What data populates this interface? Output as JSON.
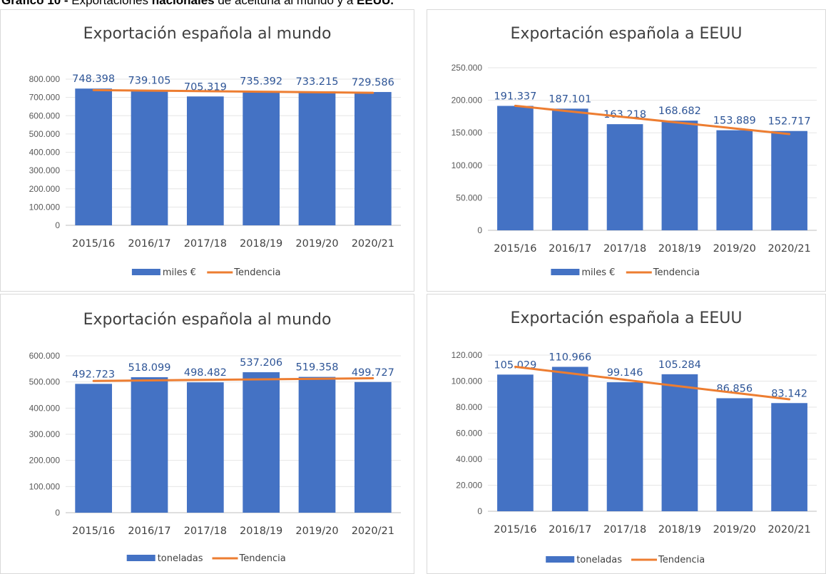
{
  "heading": {
    "prefix": "Gráfico 10 -",
    "text_before": " Exportaciones ",
    "bold_word": "nacionales",
    "text_after": " de aceituna al mundo y a ",
    "bold_end": "EEUU."
  },
  "colors": {
    "bar": "#4472c4",
    "trend": "#ed7d31"
  },
  "chart_data": [
    {
      "type": "bar",
      "title": "Exportación española al mundo",
      "categories": [
        "2015/16",
        "2016/17",
        "2017/18",
        "2018/19",
        "2019/20",
        "2020/21"
      ],
      "series": [
        {
          "name": "miles €",
          "values": [
            748398,
            739105,
            705319,
            735392,
            733215,
            729586
          ],
          "labels": [
            "748.398",
            "739.105",
            "705.319",
            "735.392",
            "733.215",
            "729.586"
          ]
        },
        {
          "name": "Tendencia",
          "type": "line",
          "values": [
            740000,
            737100,
            734200,
            731300,
            728400,
            725500
          ]
        }
      ],
      "ylim": [
        0,
        800000
      ],
      "yticks": [
        0,
        100000,
        200000,
        300000,
        400000,
        500000,
        600000,
        700000,
        800000
      ],
      "ytick_labels": [
        "0",
        "100.000",
        "200.000",
        "300.000",
        "400.000",
        "500.000",
        "600.000",
        "700.000",
        "800.000"
      ],
      "grid": true,
      "legend_position": "bottom"
    },
    {
      "type": "bar",
      "title": "Exportación española a EEUU",
      "categories": [
        "2015/16",
        "2016/17",
        "2017/18",
        "2018/19",
        "2019/20",
        "2020/21"
      ],
      "series": [
        {
          "name": "miles €",
          "values": [
            191337,
            187101,
            163218,
            168682,
            153889,
            152717
          ],
          "labels": [
            "191.337",
            "187.101",
            "163.218",
            "168.682",
            "153.889",
            "152.717"
          ]
        },
        {
          "name": "Tendencia",
          "type": "line",
          "values": [
            191500,
            182800,
            174100,
            165400,
            156700,
            148000
          ]
        }
      ],
      "ylim": [
        0,
        250000
      ],
      "yticks": [
        0,
        50000,
        100000,
        150000,
        200000,
        250000
      ],
      "ytick_labels": [
        "0",
        "50.000",
        "100.000",
        "150.000",
        "200.000",
        "250.000"
      ],
      "grid": true,
      "legend_position": "bottom"
    },
    {
      "type": "bar",
      "title": "Exportación española al mundo",
      "categories": [
        "2015/16",
        "2016/17",
        "2017/18",
        "2018/19",
        "2019/20",
        "2020/21"
      ],
      "series": [
        {
          "name": "toneladas",
          "values": [
            492723,
            518099,
            498482,
            537206,
            519358,
            499727
          ],
          "labels": [
            "492.723",
            "518.099",
            "498.482",
            "537.206",
            "519.358",
            "499.727"
          ]
        },
        {
          "name": "Tendencia",
          "type": "line",
          "values": [
            504000,
            506000,
            508000,
            510000,
            512000,
            514000
          ]
        }
      ],
      "ylim": [
        0,
        600000
      ],
      "yticks": [
        0,
        100000,
        200000,
        300000,
        400000,
        500000,
        600000
      ],
      "ytick_labels": [
        "0",
        "100.000",
        "200.000",
        "300.000",
        "400.000",
        "500.000",
        "600.000"
      ],
      "grid": true,
      "legend_position": "bottom"
    },
    {
      "type": "bar",
      "title": "Exportación española a EEUU",
      "categories": [
        "2015/16",
        "2016/17",
        "2017/18",
        "2018/19",
        "2019/20",
        "2020/21"
      ],
      "series": [
        {
          "name": "toneladas",
          "values": [
            105029,
            110966,
            99146,
            105284,
            86856,
            83142
          ],
          "labels": [
            "105.029",
            "110.966",
            "99.146",
            "105.284",
            "86.856",
            "83.142"
          ]
        },
        {
          "name": "Tendencia",
          "type": "line",
          "values": [
            111000,
            106000,
            101000,
            96000,
            91000,
            86000
          ]
        }
      ],
      "ylim": [
        0,
        120000
      ],
      "yticks": [
        0,
        20000,
        40000,
        60000,
        80000,
        100000,
        120000
      ],
      "ytick_labels": [
        "0",
        "20.000",
        "40.000",
        "60.000",
        "80.000",
        "100.000",
        "120.000"
      ],
      "grid": true,
      "legend_position": "bottom"
    }
  ]
}
